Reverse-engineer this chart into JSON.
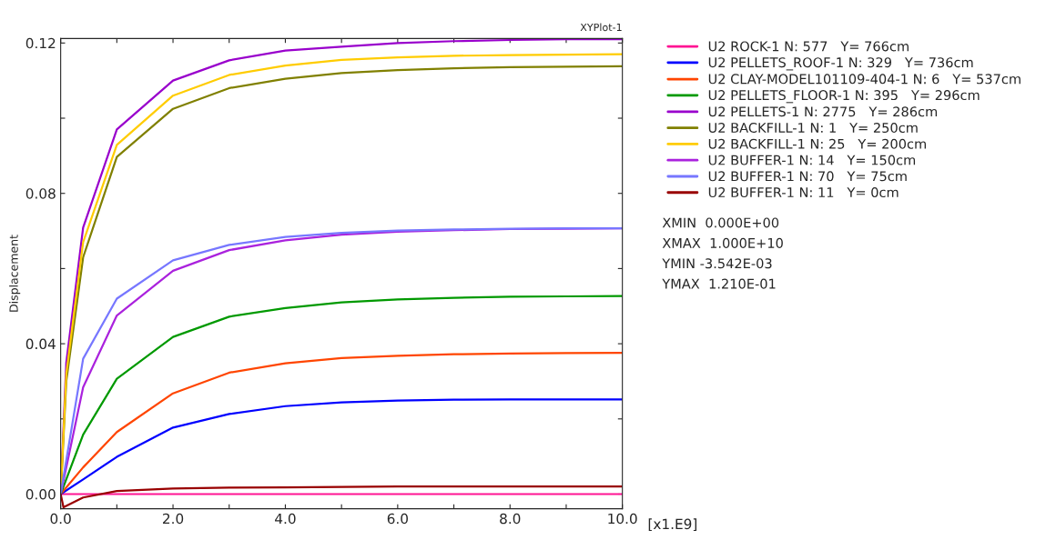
{
  "chart_data": {
    "type": "line",
    "title": "XYPlot-1",
    "ylabel": "Displacement",
    "xlabel": "[x1.E9]",
    "xlim": [
      0,
      10
    ],
    "ylim": [
      -0.0039,
      0.1212
    ],
    "xticks": [
      {
        "value": 0,
        "label": "0.0"
      },
      {
        "value": 1,
        "label": null
      },
      {
        "value": 2,
        "label": "2.0"
      },
      {
        "value": 3,
        "label": null
      },
      {
        "value": 4,
        "label": "4.0"
      },
      {
        "value": 5,
        "label": null
      },
      {
        "value": 6,
        "label": "6.0"
      },
      {
        "value": 7,
        "label": null
      },
      {
        "value": 8,
        "label": "8.0"
      },
      {
        "value": 9,
        "label": null
      },
      {
        "value": 10,
        "label": "10.0"
      }
    ],
    "yticks": [
      {
        "value": 0,
        "label": "0.00"
      },
      {
        "value": 0.02,
        "label": null
      },
      {
        "value": 0.04,
        "label": "0.04"
      },
      {
        "value": 0.06,
        "label": null
      },
      {
        "value": 0.08,
        "label": "0.08"
      },
      {
        "value": 0.1,
        "label": null
      },
      {
        "value": 0.12,
        "label": "0.12"
      }
    ],
    "grid": false,
    "legend": "right",
    "marker": "none",
    "line_style": "solid",
    "x": [
      0,
      0.4,
      1,
      2,
      3,
      4,
      5,
      6,
      7,
      8,
      9,
      10
    ],
    "series": [
      {
        "name": "U2 ROCK-1 N: 577   Y= 766cm",
        "color": "#ff1493",
        "values": [
          0,
          0,
          0,
          0,
          0,
          0,
          0,
          0,
          0,
          0,
          0,
          0
        ]
      },
      {
        "name": "U2 PELLETS_ROOF-1 N: 329   Y= 736cm",
        "color": "#0000ff",
        "values": [
          0,
          0.0039,
          0.0099,
          0.0177,
          0.0213,
          0.0234,
          0.0244,
          0.0249,
          0.0251,
          0.0252,
          0.0252,
          0.0252
        ]
      },
      {
        "name": "U2 CLAY-MODEL101109-404-1 N: 6   Y= 537cm",
        "color": "#ff4500",
        "values": [
          0,
          0.0071,
          0.0165,
          0.0268,
          0.0323,
          0.0348,
          0.0362,
          0.0368,
          0.0372,
          0.0374,
          0.0375,
          0.0376
        ]
      },
      {
        "name": "U2 PELLETS_FLOOR-1 N: 395   Y= 296cm",
        "color": "#009900",
        "values": [
          0,
          0.0158,
          0.0307,
          0.0418,
          0.0472,
          0.0495,
          0.051,
          0.0518,
          0.0522,
          0.0525,
          0.0526,
          0.0527
        ]
      },
      {
        "name": "U2 PELLETS-1 N: 2775   Y= 286cm",
        "color": "#9900cc",
        "x": [
          0,
          0.1,
          0.4,
          1,
          2,
          3,
          4,
          5,
          6,
          7,
          8,
          9,
          10
        ],
        "values": [
          0,
          0.035,
          0.0709,
          0.097,
          0.11,
          0.1154,
          0.118,
          0.119,
          0.12,
          0.1205,
          0.1208,
          0.121,
          0.121
        ]
      },
      {
        "name": "U2 BACKFILL-1 N: 1   Y= 250cm",
        "color": "#808000",
        "x": [
          0,
          0.1,
          0.4,
          1,
          2,
          3,
          4,
          5,
          6,
          7,
          8,
          9,
          10
        ],
        "values": [
          0,
          0.03,
          0.063,
          0.0897,
          0.1025,
          0.108,
          0.1105,
          0.112,
          0.1128,
          0.1133,
          0.1136,
          0.1137,
          0.1138
        ]
      },
      {
        "name": "U2 BACKFILL-1 N: 25   Y= 200cm",
        "color": "#ffcc00",
        "x": [
          0,
          0.1,
          0.4,
          1,
          2,
          3,
          4,
          5,
          6,
          7,
          8,
          9,
          10
        ],
        "values": [
          0,
          0.032,
          0.067,
          0.0929,
          0.106,
          0.1115,
          0.114,
          0.1155,
          0.1162,
          0.1166,
          0.1168,
          0.1169,
          0.117
        ]
      },
      {
        "name": "U2 BUFFER-1 N: 14   Y= 150cm",
        "color": "#aa22dd",
        "values": [
          0,
          0.0284,
          0.0475,
          0.0594,
          0.0649,
          0.0675,
          0.069,
          0.0698,
          0.0702,
          0.0705,
          0.0706,
          0.0707
        ]
      },
      {
        "name": "U2 BUFFER-1 N: 70   Y= 75cm",
        "color": "#7777ff",
        "values": [
          0,
          0.036,
          0.052,
          0.0622,
          0.0663,
          0.0684,
          0.0695,
          0.0701,
          0.0704,
          0.0706,
          0.0707,
          0.0707
        ]
      },
      {
        "name": "U2 BUFFER-1 N: 11   Y= 0cm",
        "color": "#990000",
        "x": [
          0,
          0.05,
          0.4,
          1,
          2,
          3,
          4,
          5,
          6,
          7,
          8,
          9,
          10
        ],
        "values": [
          0,
          -0.0035,
          -0.0009,
          0.0008,
          0.0015,
          0.0017,
          0.0018,
          0.0019,
          0.002,
          0.002,
          0.002,
          0.002,
          0.002
        ]
      }
    ],
    "annotations": [
      "XMIN  0.000E+00",
      "XMAX  1.000E+10",
      "YMIN -3.542E-03",
      "YMAX  1.210E-01"
    ]
  }
}
